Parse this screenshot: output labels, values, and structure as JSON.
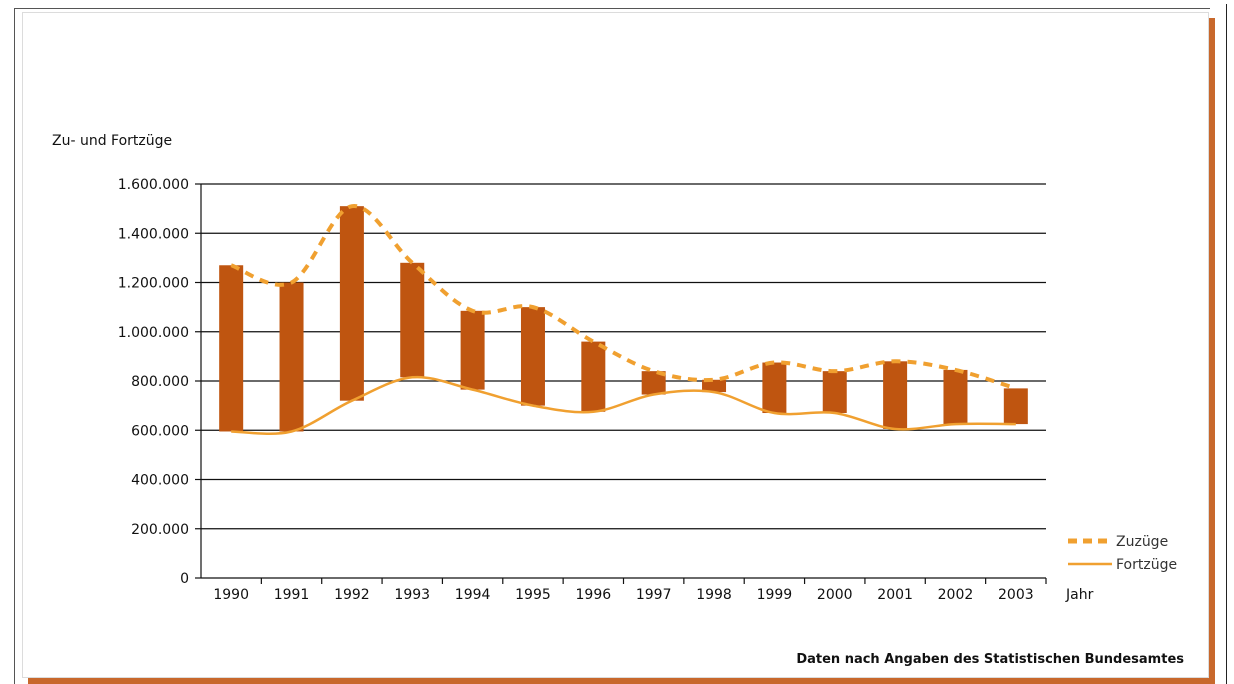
{
  "colors": {
    "bar": "#bf5510",
    "zuzuege_line": "#f0a030",
    "fortzuege_line": "#f0a030",
    "grid": "#111111",
    "shadow": "#c8682c"
  },
  "source_text": "Daten nach Angaben des Statistischen Bundesamtes",
  "chart_data": {
    "type": "bar",
    "title": "",
    "ylabel": "Zu- und Fortzüge",
    "xlabel": "Jahr",
    "ylim": [
      0,
      1600000
    ],
    "y_ticks": [
      0,
      200000,
      400000,
      600000,
      800000,
      1000000,
      1200000,
      1400000,
      1600000
    ],
    "y_tick_labels": [
      "0",
      "200.000",
      "400.000",
      "600.000",
      "800.000",
      "1.000.000",
      "1.200.000",
      "1.400.000",
      "1.600.000"
    ],
    "grid": true,
    "legend_position": "bottom-right",
    "categories": [
      "1990",
      "1991",
      "1992",
      "1993",
      "1994",
      "1995",
      "1996",
      "1997",
      "1998",
      "1999",
      "2000",
      "2001",
      "2002",
      "2003"
    ],
    "series": [
      {
        "name": "Zuzüge",
        "style": "dashed",
        "values": [
          1270000,
          1200000,
          1510000,
          1280000,
          1085000,
          1100000,
          960000,
          840000,
          805000,
          875000,
          840000,
          880000,
          845000,
          770000
        ]
      },
      {
        "name": "Fortzüge",
        "style": "solid",
        "values": [
          595000,
          595000,
          720000,
          815000,
          765000,
          700000,
          675000,
          745000,
          755000,
          670000,
          670000,
          605000,
          625000,
          625000
        ]
      }
    ]
  }
}
